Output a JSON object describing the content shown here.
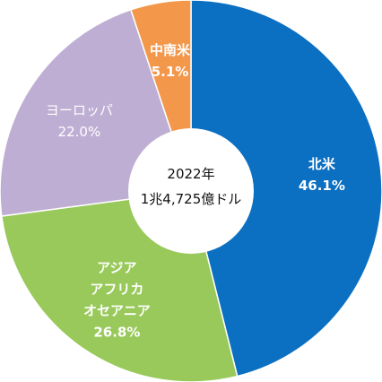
{
  "chart_data": {
    "type": "pie",
    "center_label": {
      "line1": "2022年",
      "line2": "1兆4,725億ドル"
    },
    "slices": [
      {
        "label_lines": [
          "北米"
        ],
        "percent_text": "46.1%",
        "value": 46.1,
        "color": "#0b6fc2",
        "text_color": "#ffffff",
        "text_weight": "bold"
      },
      {
        "label_lines": [
          "アジア",
          "アフリカ",
          "オセアニア"
        ],
        "percent_text": "26.8%",
        "value": 26.8,
        "color": "#98c95a",
        "text_color": "#ffffff",
        "text_weight": "bold"
      },
      {
        "label_lines": [
          "ヨーロッパ"
        ],
        "percent_text": "22.0%",
        "value": 22.0,
        "color": "#bfaed3",
        "text_color": "#ffffff",
        "text_weight": "normal"
      },
      {
        "label_lines": [
          "中南米"
        ],
        "percent_text": "5.1%",
        "value": 5.1,
        "color": "#f3974b",
        "text_color": "#ffffff",
        "text_weight": "bold"
      }
    ]
  }
}
